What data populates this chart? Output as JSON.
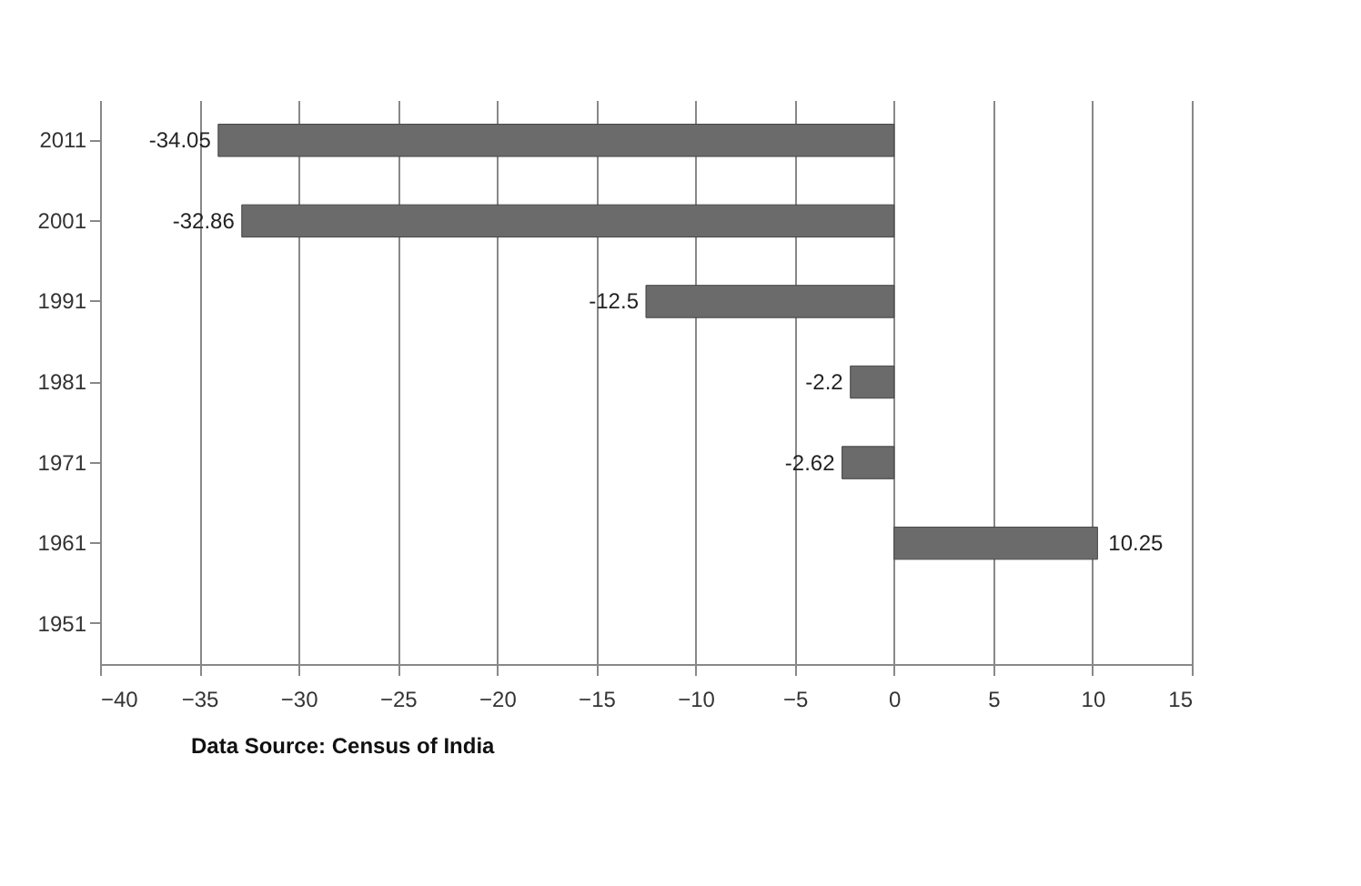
{
  "chart_data": {
    "type": "bar",
    "orientation": "horizontal",
    "categories": [
      "2011",
      "2001",
      "1991",
      "1981",
      "1971",
      "1961",
      "1951"
    ],
    "series": [
      {
        "color": "#6b6b6b",
        "values": [
          -34.05,
          -32.86,
          -12.5,
          -2.2,
          -2.62,
          10.25,
          null
        ]
      }
    ],
    "xlim": [
      -40,
      15
    ],
    "xticks": [
      -40,
      -35,
      -30,
      -25,
      -20,
      -15,
      -10,
      -5,
      0,
      5,
      10,
      15
    ],
    "grid": "x",
    "data_labels": true,
    "annotations": [
      "Data Source: Census of India"
    ]
  }
}
